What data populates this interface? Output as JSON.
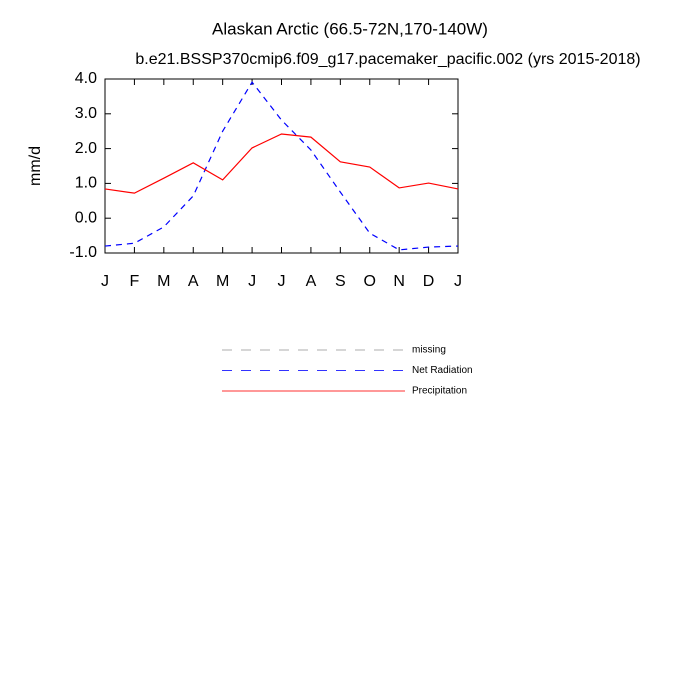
{
  "chart_data": {
    "type": "line",
    "title": "Alaskan Arctic (66.5-72N,170-140W)",
    "subtitle": "b.e21.BSSP370cmip6.f09_g17.pacemaker_pacific.002 (yrs 2015-2018)",
    "y_label": "mm/d",
    "categories": [
      "J",
      "F",
      "M",
      "A",
      "M",
      "J",
      "J",
      "A",
      "S",
      "O",
      "N",
      "D",
      "J"
    ],
    "series": [
      {
        "name": "Net Radiation",
        "color": "#0000ff",
        "dash": true,
        "values": [
          -0.8,
          -0.72,
          -0.25,
          0.64,
          2.5,
          3.91,
          2.82,
          1.96,
          0.75,
          -0.43,
          -0.91,
          -0.83,
          -0.8
        ]
      },
      {
        "name": "Precipitation",
        "color": "#ff0000",
        "dash": false,
        "values": [
          0.84,
          0.72,
          1.15,
          1.59,
          1.1,
          2.02,
          2.42,
          2.33,
          1.62,
          1.47,
          0.87,
          1.01,
          0.84
        ]
      }
    ],
    "legend": [
      {
        "name": "missing",
        "color": "#999999",
        "dash": true
      },
      {
        "name": "Net Radiation",
        "color": "#0000ff",
        "dash": true
      },
      {
        "name": "Precipitation",
        "color": "#ff0000",
        "dash": false
      }
    ],
    "ylim": [
      -1,
      4
    ],
    "yticks": [
      {
        "value": -1,
        "label": "-1.0"
      },
      {
        "value": 0,
        "label": "0.0"
      },
      {
        "value": 1,
        "label": "1.0"
      },
      {
        "value": 2,
        "label": "2.0"
      },
      {
        "value": 3,
        "label": "3.0"
      },
      {
        "value": 4,
        "label": "4.0"
      }
    ]
  }
}
